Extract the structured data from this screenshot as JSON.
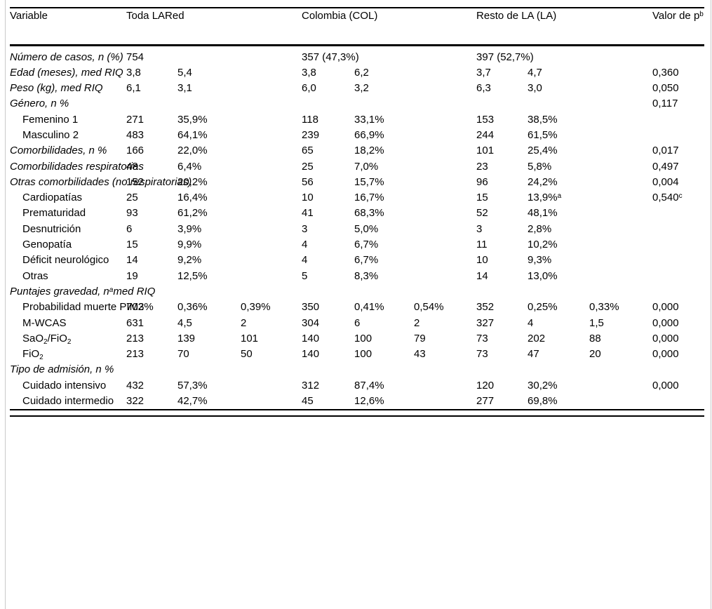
{
  "table": {
    "header": {
      "variable": "Variable",
      "groups": [
        {
          "label": "Toda LARed"
        },
        {
          "label": "Colombia (COL)"
        },
        {
          "label": "Resto de LA (LA)"
        }
      ],
      "p_label": "Valor de p^b^"
    },
    "rows": [
      {
        "style": "section",
        "label": "Número de casos, n (%)",
        "cells": [
          "754",
          "",
          "",
          "357 (47,3%)",
          "",
          "",
          "397 (52,7%)",
          "",
          "",
          ""
        ]
      },
      {
        "style": "section",
        "label": "Edad (meses), med RIQ",
        "cells": [
          "3,8",
          "5,4",
          "",
          "3,8",
          "6,2",
          "",
          "3,7",
          "4,7",
          "",
          "0,360"
        ]
      },
      {
        "style": "section",
        "label": "Peso (kg), med RIQ",
        "cells": [
          "6,1",
          "3,1",
          "",
          "6,0",
          "3,2",
          "",
          "6,3",
          "3,0",
          "",
          "0,050"
        ]
      },
      {
        "style": "section wide",
        "label": "Género, n %",
        "cells": [
          "",
          "",
          "",
          "",
          "",
          "",
          "",
          "",
          "",
          "0,117"
        ]
      },
      {
        "style": "sub",
        "label": "Femenino 1",
        "cells": [
          "271",
          "35,9%",
          "",
          "118",
          "33,1%",
          "",
          "153",
          "38,5%",
          "",
          ""
        ]
      },
      {
        "style": "sub",
        "label": "Masculino 2",
        "cells": [
          "483",
          "64,1%",
          "",
          "239",
          "66,9%",
          "",
          "244",
          "61,5%",
          "",
          ""
        ]
      },
      {
        "style": "section",
        "label": "Comorbilidades, n %",
        "cells": [
          "166",
          "22,0%",
          "",
          "65",
          "18,2%",
          "",
          "101",
          "25,4%",
          "",
          "0,017"
        ]
      },
      {
        "style": "section",
        "label": "Comorbilidades respiratorias",
        "cells": [
          "48",
          "6,4%",
          "",
          "25",
          "7,0%",
          "",
          "23",
          "5,8%",
          "",
          "0,497"
        ]
      },
      {
        "style": "section",
        "label": "Otras comorbilidades (no respiratorias)",
        "cells": [
          "152",
          "20,2%",
          "",
          "56",
          "15,7%",
          "",
          "96",
          "24,2%",
          "",
          "0,004"
        ]
      },
      {
        "style": "sub",
        "label": "Cardiopatías",
        "cells": [
          "25",
          "16,4%",
          "",
          "10",
          "16,7%",
          "",
          "15",
          "13,9%^a^",
          "",
          "0,540^c^"
        ]
      },
      {
        "style": "sub",
        "label": "Prematuridad",
        "cells": [
          "93",
          "61,2%",
          "",
          "41",
          "68,3%",
          "",
          "52",
          "48,1%",
          "",
          ""
        ]
      },
      {
        "style": "sub",
        "label": "Desnutrición",
        "cells": [
          "6",
          "3,9%",
          "",
          "3",
          "5,0%",
          "",
          "3",
          "2,8%",
          "",
          ""
        ]
      },
      {
        "style": "sub",
        "label": "Genopatía",
        "cells": [
          "15",
          "9,9%",
          "",
          "4",
          "6,7%",
          "",
          "11",
          "10,2%",
          "",
          ""
        ]
      },
      {
        "style": "sub",
        "label": "Déficit neurológico",
        "cells": [
          "14",
          "9,2%",
          "",
          "4",
          "6,7%",
          "",
          "10",
          "9,3%",
          "",
          ""
        ]
      },
      {
        "style": "sub",
        "label": "Otras",
        "cells": [
          "19",
          "12,5%",
          "",
          "5",
          "8,3%",
          "",
          "14",
          "13,0%",
          "",
          ""
        ]
      },
      {
        "style": "section wide",
        "label": "Puntajes gravedad, n^a^med RIQ",
        "cells": [
          "",
          "",
          "",
          "",
          "",
          "",
          "",
          "",
          "",
          ""
        ]
      },
      {
        "style": "sub",
        "label": "Probabilidad muerte PIM3%",
        "cells": [
          "702",
          "0,36%",
          "0,39%",
          "350",
          "0,41%",
          "0,54%",
          "352",
          "0,25%",
          "0,33%",
          "0,000"
        ]
      },
      {
        "style": "sub",
        "label": "M-WCAS",
        "cells": [
          "631",
          "4,5",
          "2",
          "304",
          "6",
          "2",
          "327",
          "4",
          "1,5",
          "0,000"
        ]
      },
      {
        "style": "sub",
        "label": "SaO~2~/FiO~2~",
        "cells": [
          "213",
          "139",
          "101",
          "140",
          "100",
          "79",
          "73",
          "202",
          "88",
          "0,000"
        ]
      },
      {
        "style": "sub",
        "label": "FiO~2~",
        "cells": [
          "213",
          "70",
          "50",
          "140",
          "100",
          "43",
          "73",
          "47",
          "20",
          "0,000"
        ]
      },
      {
        "style": "section wide",
        "label": "Tipo de admisión, n %",
        "cells": [
          "",
          "",
          "",
          "",
          "",
          "",
          "",
          "",
          "",
          ""
        ]
      },
      {
        "style": "sub",
        "label": "Cuidado intensivo",
        "cells": [
          "432",
          "57,3%",
          "",
          "312",
          "87,4%",
          "",
          "120",
          "30,2%",
          "",
          "0,000"
        ]
      },
      {
        "style": "sub",
        "label": "Cuidado intermedio",
        "cells": [
          "322",
          "42,7%",
          "",
          "45",
          "12,6%",
          "",
          "277",
          "69,8%",
          "",
          ""
        ]
      }
    ]
  }
}
